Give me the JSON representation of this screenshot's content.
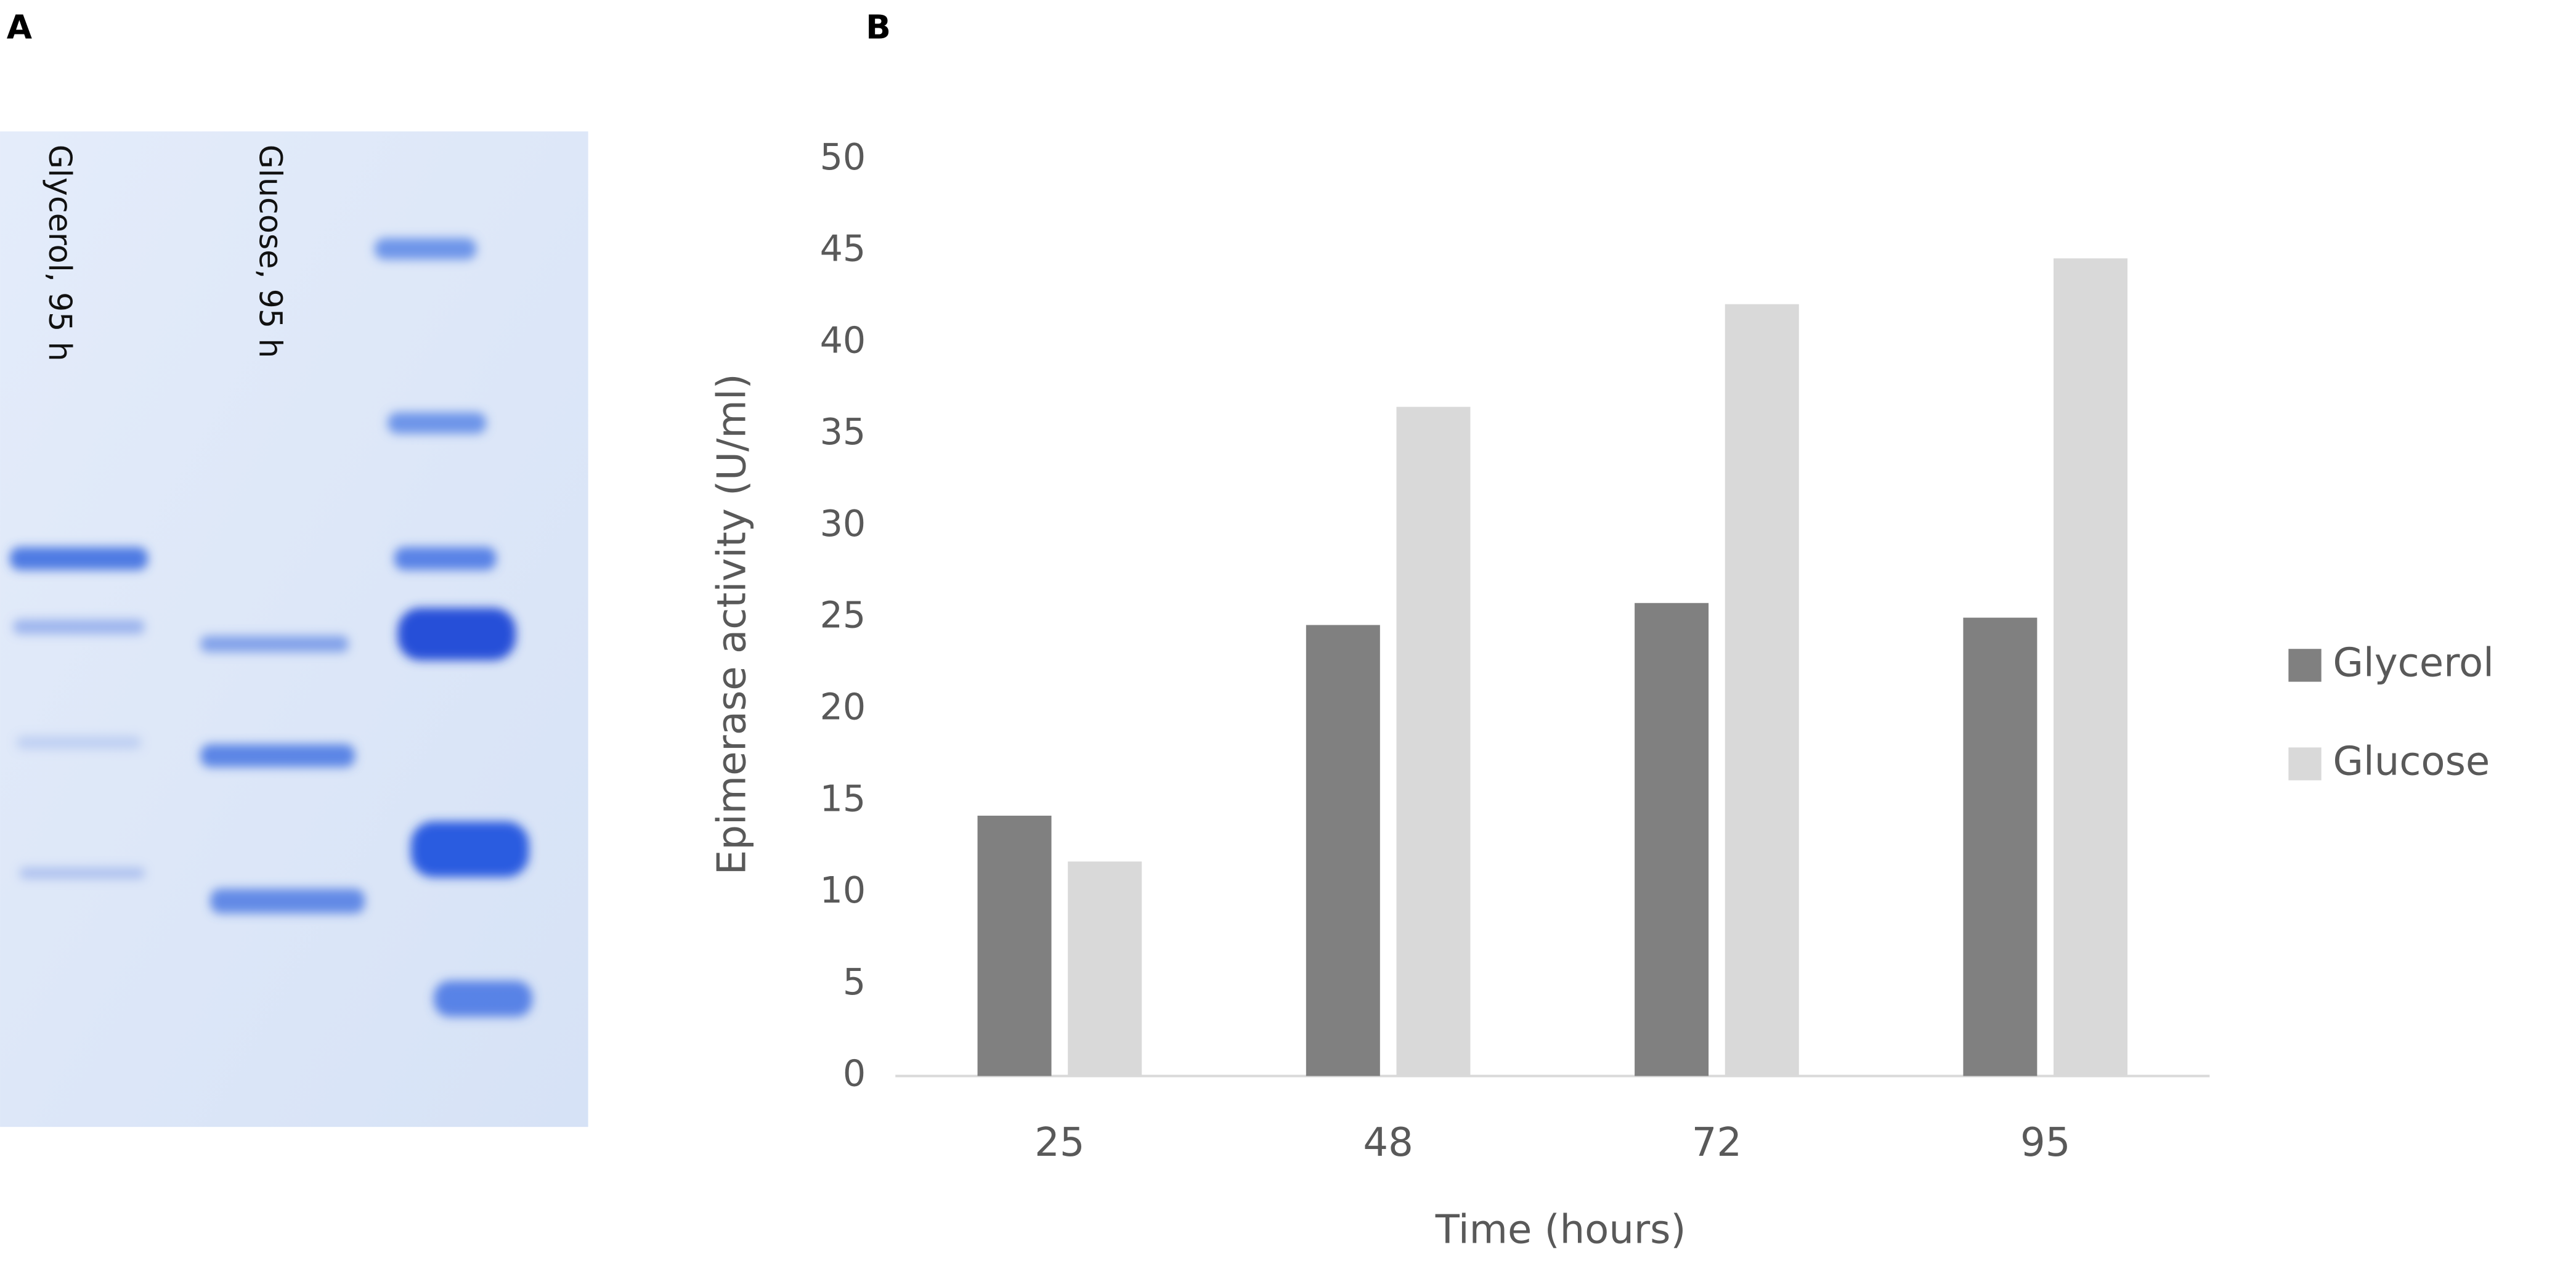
{
  "panels": {
    "a": "A",
    "b": "B"
  },
  "gel": {
    "lanes": [
      "Glycerol, 95 h",
      "Glucose, 95 h"
    ]
  },
  "chart_data": {
    "type": "bar",
    "x_label": "Time (hours)",
    "y_label": "Epimerase activity (U/ml)",
    "categories": [
      "25",
      "48",
      "72",
      "95"
    ],
    "series": [
      {
        "name": "Glycerol",
        "color": "#808080",
        "values": [
          14.2,
          24.6,
          25.8,
          25.0
        ]
      },
      {
        "name": "Glucose",
        "color": "#d9d9d9",
        "values": [
          11.7,
          36.5,
          42.1,
          44.6
        ]
      }
    ],
    "ylim": [
      0,
      50
    ],
    "yticks": [
      0,
      5,
      10,
      15,
      20,
      25,
      30,
      35,
      40,
      45,
      50
    ],
    "legend": "right"
  }
}
